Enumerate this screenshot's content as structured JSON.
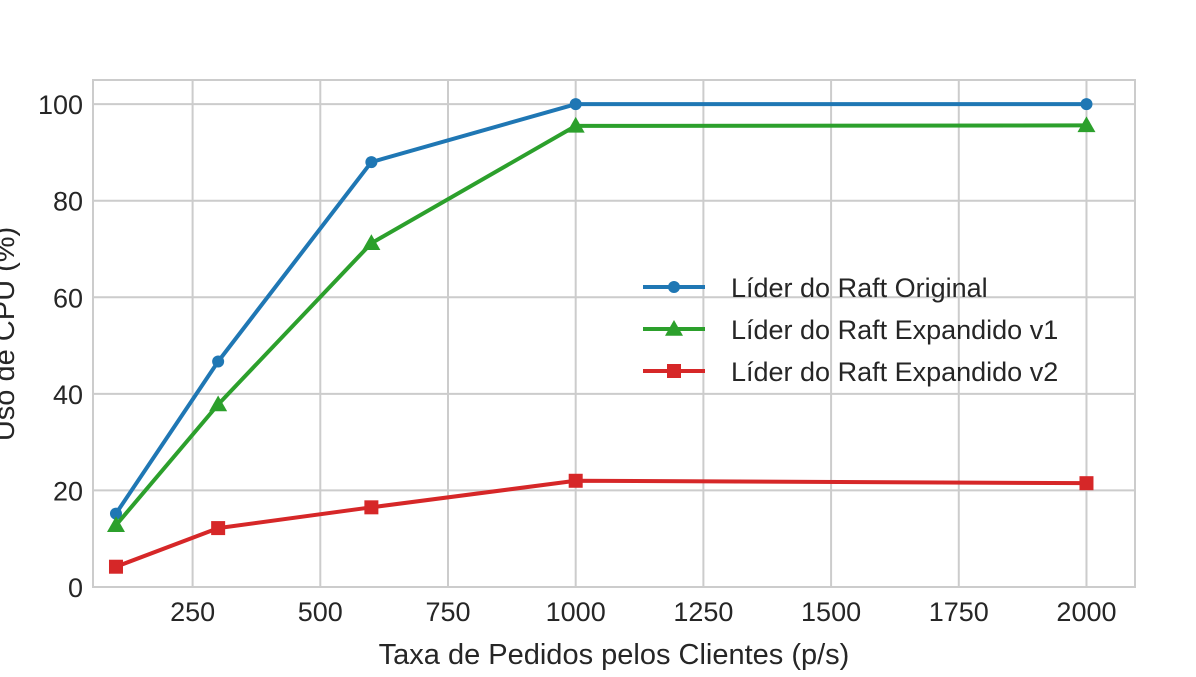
{
  "chart_data": {
    "type": "line",
    "title": "",
    "xlabel": "Taxa de Pedidos pelos Clientes (p/s)",
    "ylabel": "Uso de CPU (%)",
    "x": [
      100,
      300,
      600,
      1000,
      2000
    ],
    "xlim": [
      55,
      2095
    ],
    "ylim": [
      0,
      105
    ],
    "xticks": [
      250,
      500,
      750,
      1000,
      1250,
      1500,
      1750,
      2000
    ],
    "yticks": [
      0,
      20,
      40,
      60,
      80,
      100
    ],
    "grid": true,
    "legend_position": "center-right",
    "series": [
      {
        "name": "Líder do Raft Original",
        "values": [
          15.2,
          46.7,
          88.0,
          100.0,
          100.0
        ],
        "color": "#1f77b4",
        "marker": "circle"
      },
      {
        "name": "Líder do Raft Expandido v1",
        "values": [
          12.8,
          37.8,
          71.2,
          95.5,
          95.6
        ],
        "color": "#2ca02c",
        "marker": "triangle"
      },
      {
        "name": "Líder do Raft Expandido v2",
        "values": [
          4.2,
          12.2,
          16.5,
          22.0,
          21.5
        ],
        "color": "#d62728",
        "marker": "square"
      }
    ]
  }
}
